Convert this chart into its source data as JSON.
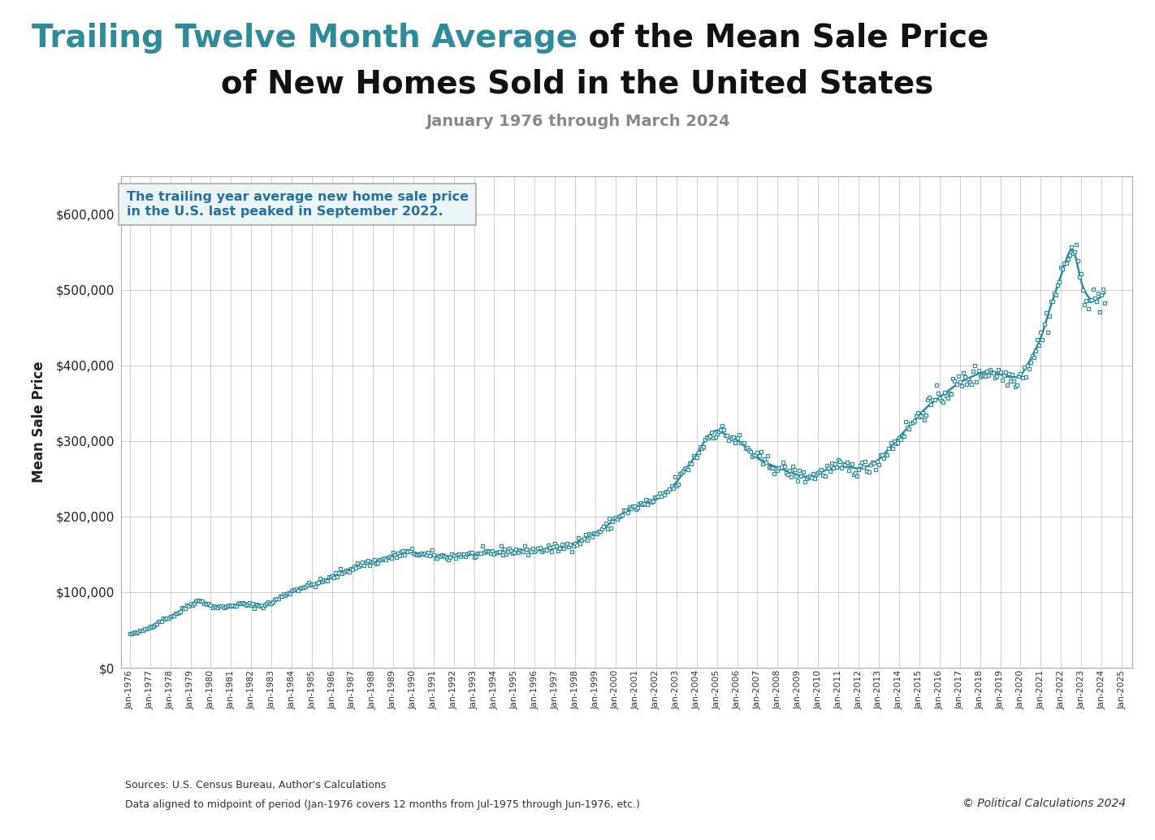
{
  "title_part1": "Trailing Twelve Month Average",
  "title_part2": " of the Mean Sale Price",
  "title_line2": "of New Homes Sold in the United States",
  "subtitle": "January 1976 through March 2024",
  "ylabel": "Mean Sale Price",
  "annotation_text": "The trailing year average new home sale price\nin the U.S. last peaked in September 2022.",
  "source_line1": "Sources: U.S. Census Bureau, Author's Calculations",
  "source_line2": "Data aligned to midpoint of period (Jan-1976 covers 12 months from Jul-1975 through Jun-1976, etc.)",
  "copyright": "© Political Calculations 2024",
  "line_color": "#2E8B9A",
  "marker_color": "#2E8B9A",
  "annotation_box_facecolor": "#EBF5F8",
  "annotation_text_color": "#2271A0",
  "annotation_border_color": "#AAAAAA",
  "title_color1": "#2E8B9A",
  "title_color2": "#111111",
  "subtitle_color": "#888888",
  "background_color": "#FFFFFF",
  "plot_bg_color": "#FFFFFF",
  "grid_color": "#C8C8C8",
  "spine_color": "#AAAAAA",
  "ylim": [
    0,
    650000
  ],
  "yticks": [
    0,
    100000,
    200000,
    300000,
    400000,
    500000,
    600000
  ],
  "xlim_start": 1975.58,
  "xlim_end": 2025.5,
  "x_sparse": [
    1976.0,
    1976.5,
    1977.0,
    1977.5,
    1978.0,
    1978.5,
    1979.0,
    1979.5,
    1980.0,
    1980.5,
    1981.0,
    1981.5,
    1982.0,
    1982.5,
    1983.0,
    1983.5,
    1984.0,
    1984.5,
    1985.0,
    1985.5,
    1986.0,
    1986.5,
    1987.0,
    1987.5,
    1988.0,
    1988.5,
    1989.0,
    1989.5,
    1990.0,
    1990.5,
    1991.0,
    1991.5,
    1992.0,
    1992.5,
    1993.0,
    1993.5,
    1994.0,
    1994.5,
    1995.0,
    1995.5,
    1996.0,
    1996.5,
    1997.0,
    1997.5,
    1998.0,
    1998.5,
    1999.0,
    1999.5,
    2000.0,
    2000.5,
    2001.0,
    2001.5,
    2002.0,
    2002.5,
    2003.0,
    2003.5,
    2004.0,
    2004.5,
    2005.0,
    2005.5,
    2006.0,
    2006.5,
    2007.0,
    2007.5,
    2008.0,
    2008.5,
    2009.0,
    2009.5,
    2010.0,
    2010.5,
    2011.0,
    2011.5,
    2012.0,
    2012.5,
    2013.0,
    2013.5,
    2014.0,
    2014.5,
    2015.0,
    2015.5,
    2016.0,
    2016.5,
    2017.0,
    2017.5,
    2018.0,
    2018.5,
    2019.0,
    2019.5,
    2020.0,
    2020.5,
    2021.0,
    2021.5,
    2022.0,
    2022.5,
    2022.75,
    2023.0,
    2023.5,
    2024.0,
    2024.17
  ],
  "y_sparse": [
    44700,
    48000,
    54000,
    62000,
    68000,
    75000,
    85000,
    90000,
    82000,
    80000,
    82000,
    85000,
    83000,
    82000,
    86000,
    95000,
    102000,
    107000,
    110000,
    114000,
    120000,
    127000,
    132000,
    138000,
    140000,
    143000,
    148000,
    152000,
    153000,
    150000,
    148000,
    147000,
    148000,
    150000,
    150000,
    151000,
    153000,
    155000,
    155000,
    155000,
    156000,
    157000,
    158000,
    161000,
    165000,
    172000,
    178000,
    186000,
    198000,
    207000,
    213000,
    218000,
    222000,
    232000,
    245000,
    264000,
    282000,
    305000,
    316000,
    307000,
    302000,
    290000,
    277000,
    270000,
    265000,
    260000,
    255000,
    252000,
    257000,
    263000,
    265000,
    266000,
    263000,
    267000,
    275000,
    290000,
    305000,
    320000,
    335000,
    348000,
    358000,
    368000,
    378000,
    384000,
    390000,
    393000,
    388000,
    384000,
    385000,
    408000,
    435000,
    480000,
    518000,
    560000,
    545000,
    505000,
    484000,
    490000,
    499000
  ]
}
